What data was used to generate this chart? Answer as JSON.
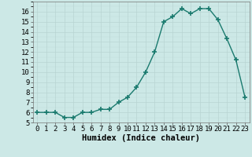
{
  "x": [
    0,
    1,
    2,
    3,
    4,
    5,
    6,
    7,
    8,
    9,
    10,
    11,
    12,
    13,
    14,
    15,
    16,
    17,
    18,
    19,
    20,
    21,
    22,
    23
  ],
  "y": [
    6.0,
    6.0,
    6.0,
    5.5,
    5.5,
    6.0,
    6.0,
    6.3,
    6.3,
    7.0,
    7.5,
    8.5,
    10.0,
    12.0,
    15.0,
    15.5,
    16.3,
    15.8,
    16.3,
    16.3,
    15.2,
    13.3,
    11.2,
    7.5
  ],
  "xlim": [
    -0.5,
    23.5
  ],
  "ylim": [
    5,
    17
  ],
  "yticks": [
    5,
    6,
    7,
    8,
    9,
    10,
    11,
    12,
    13,
    14,
    15,
    16
  ],
  "xticks": [
    0,
    1,
    2,
    3,
    4,
    5,
    6,
    7,
    8,
    9,
    10,
    11,
    12,
    13,
    14,
    15,
    16,
    17,
    18,
    19,
    20,
    21,
    22,
    23
  ],
  "xlabel": "Humidex (Indice chaleur)",
  "line_color": "#1a7a6e",
  "marker": "+",
  "marker_size": 4.0,
  "marker_lw": 1.2,
  "line_width": 1.0,
  "bg_color": "#cce8e6",
  "grid_color": "#b8d4d2",
  "xlabel_fontsize": 7.5,
  "tick_fontsize": 6.5,
  "font_family": "monospace"
}
